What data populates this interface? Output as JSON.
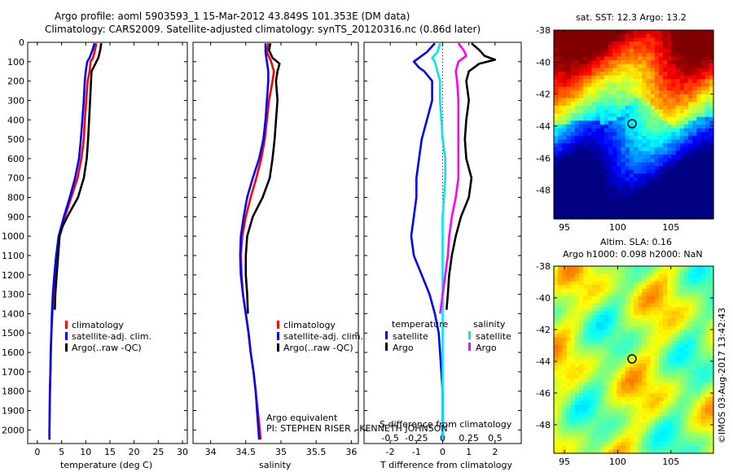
{
  "header": {
    "line1": "Argo profile: aoml 5903593_1 15-Mar-2012 43.849S 101.353E (DM data)",
    "line2": "Climatology: CARS2009. Satellite-adjusted climatology: synTS_20120316.nc (0.86d later)"
  },
  "colors": {
    "red": "#ff0000",
    "blue": "#0000ff",
    "black": "#000000",
    "cyan": "#00e5ee",
    "magenta": "#ff00ff"
  },
  "chart_data": [
    {
      "type": "line",
      "panel": "temperature",
      "xlabel": "temperature (deg C)",
      "xlim": [
        -2,
        31
      ],
      "xticks": [
        0,
        5,
        10,
        15,
        20,
        25,
        30
      ],
      "ylim": [
        2070,
        0
      ],
      "yticks": [
        0,
        100,
        200,
        300,
        400,
        500,
        600,
        700,
        800,
        900,
        1000,
        1100,
        1200,
        1300,
        1400,
        1500,
        1600,
        1700,
        1800,
        1900,
        2000
      ],
      "legend": [
        "climatology",
        "satellite-adj. clim.",
        "Argo(..raw -QC)"
      ],
      "series": [
        {
          "name": "climatology",
          "color": "red",
          "points": [
            [
              12.2,
              5
            ],
            [
              11.9,
              40
            ],
            [
              11.5,
              80
            ],
            [
              11.0,
              100
            ],
            [
              10.8,
              150
            ],
            [
              10.4,
              200
            ],
            [
              10.1,
              300
            ],
            [
              9.8,
              400
            ],
            [
              9.6,
              500
            ],
            [
              9.1,
              600
            ],
            [
              8.3,
              700
            ],
            [
              7.0,
              800
            ],
            [
              5.7,
              900
            ],
            [
              4.5,
              1000
            ],
            [
              3.9,
              1100
            ],
            [
              3.6,
              1200
            ],
            [
              3.3,
              1300
            ],
            [
              3.1,
              1400
            ],
            [
              2.9,
              1500
            ],
            [
              2.8,
              1600
            ],
            [
              2.7,
              1700
            ],
            [
              2.6,
              1800
            ],
            [
              2.55,
              1900
            ],
            [
              2.5,
              2000
            ],
            [
              2.5,
              2050
            ]
          ]
        },
        {
          "name": "satellite-adj. clim.",
          "color": "blue",
          "points": [
            [
              11.8,
              5
            ],
            [
              11.4,
              40
            ],
            [
              10.8,
              80
            ],
            [
              10.3,
              100
            ],
            [
              10.0,
              150
            ],
            [
              9.8,
              200
            ],
            [
              9.6,
              300
            ],
            [
              9.3,
              400
            ],
            [
              9.0,
              500
            ],
            [
              8.6,
              600
            ],
            [
              7.8,
              700
            ],
            [
              6.7,
              800
            ],
            [
              5.5,
              900
            ],
            [
              4.4,
              1000
            ],
            [
              3.9,
              1100
            ],
            [
              3.5,
              1200
            ],
            [
              3.2,
              1300
            ],
            [
              3.0,
              1400
            ],
            [
              2.9,
              1500
            ],
            [
              2.75,
              1600
            ],
            [
              2.7,
              1700
            ],
            [
              2.6,
              1800
            ],
            [
              2.55,
              1900
            ],
            [
              2.5,
              2000
            ],
            [
              2.5,
              2050
            ]
          ]
        },
        {
          "name": "Argo(..raw -QC)",
          "color": "black",
          "points": [
            [
              13.2,
              5
            ],
            [
              13.0,
              40
            ],
            [
              12.6,
              80
            ],
            [
              12.0,
              110
            ],
            [
              11.2,
              150
            ],
            [
              11.1,
              200
            ],
            [
              10.9,
              300
            ],
            [
              10.7,
              400
            ],
            [
              10.5,
              500
            ],
            [
              10.2,
              600
            ],
            [
              9.6,
              700
            ],
            [
              8.4,
              800
            ],
            [
              6.2,
              900
            ],
            [
              5.2,
              950
            ],
            [
              4.6,
              1000
            ],
            [
              4.3,
              1100
            ],
            [
              4.0,
              1200
            ],
            [
              3.7,
              1300
            ],
            [
              3.6,
              1380
            ]
          ]
        }
      ]
    },
    {
      "type": "line",
      "panel": "salinity",
      "xlabel": "salinity",
      "xlim": [
        33.75,
        36.1
      ],
      "xticks": [
        34,
        34.5,
        35,
        35.5,
        36
      ],
      "xticklabels": [
        "34",
        "34.5",
        "35",
        "35.5",
        "36"
      ],
      "ylim": [
        2070,
        0
      ],
      "legend": [
        "climatology",
        "satellite-adj. clim.",
        "Argo(..raw -QC)"
      ],
      "annotation": [
        "Argo equivalent",
        "PI: STEPHEN RISER , KENNETH JOHNSON"
      ],
      "series": [
        {
          "name": "climatology",
          "color": "red",
          "points": [
            [
              34.82,
              5
            ],
            [
              34.8,
              50
            ],
            [
              34.86,
              100
            ],
            [
              34.9,
              150
            ],
            [
              34.88,
              200
            ],
            [
              34.83,
              300
            ],
            [
              34.8,
              400
            ],
            [
              34.77,
              500
            ],
            [
              34.72,
              600
            ],
            [
              34.65,
              700
            ],
            [
              34.57,
              800
            ],
            [
              34.5,
              900
            ],
            [
              34.45,
              1000
            ],
            [
              34.43,
              1100
            ],
            [
              34.44,
              1200
            ],
            [
              34.46,
              1300
            ],
            [
              34.5,
              1400
            ],
            [
              34.54,
              1500
            ],
            [
              34.57,
              1600
            ],
            [
              34.61,
              1700
            ],
            [
              34.64,
              1800
            ],
            [
              34.67,
              1900
            ],
            [
              34.7,
              2000
            ],
            [
              34.71,
              2050
            ]
          ]
        },
        {
          "name": "satellite-adj. clim.",
          "color": "blue",
          "points": [
            [
              34.78,
              5
            ],
            [
              34.78,
              50
            ],
            [
              34.8,
              100
            ],
            [
              34.82,
              150
            ],
            [
              34.82,
              200
            ],
            [
              34.8,
              300
            ],
            [
              34.78,
              400
            ],
            [
              34.75,
              500
            ],
            [
              34.69,
              600
            ],
            [
              34.6,
              700
            ],
            [
              34.52,
              800
            ],
            [
              34.47,
              900
            ],
            [
              34.43,
              1000
            ],
            [
              34.42,
              1100
            ],
            [
              34.43,
              1200
            ],
            [
              34.46,
              1300
            ],
            [
              34.5,
              1400
            ],
            [
              34.54,
              1500
            ],
            [
              34.57,
              1600
            ],
            [
              34.61,
              1700
            ],
            [
              34.64,
              1800
            ],
            [
              34.66,
              1900
            ],
            [
              34.68,
              2000
            ],
            [
              34.69,
              2050
            ]
          ]
        },
        {
          "name": "Argo(..raw -QC)",
          "color": "black",
          "points": [
            [
              34.85,
              5
            ],
            [
              34.83,
              40
            ],
            [
              34.88,
              80
            ],
            [
              34.98,
              110
            ],
            [
              34.95,
              150
            ],
            [
              34.93,
              200
            ],
            [
              34.95,
              300
            ],
            [
              34.93,
              400
            ],
            [
              34.91,
              500
            ],
            [
              34.88,
              600
            ],
            [
              34.84,
              700
            ],
            [
              34.74,
              800
            ],
            [
              34.6,
              900
            ],
            [
              34.52,
              1000
            ],
            [
              34.5,
              1100
            ],
            [
              34.5,
              1200
            ],
            [
              34.52,
              1300
            ],
            [
              34.53,
              1400
            ]
          ]
        }
      ]
    },
    {
      "type": "line",
      "panel": "difference",
      "xlabel": "T difference from climatology",
      "x2label": "S difference from climatology",
      "xlim": [
        -3,
        3
      ],
      "xticks": [
        -2,
        -1,
        0,
        1,
        2
      ],
      "x2ticks": [
        -0.5,
        -0.25,
        0,
        0.25,
        0.5
      ],
      "x2ticklabels": [
        "-0.5",
        "-0.25",
        "0",
        "0.25",
        "0.5"
      ],
      "ylim": [
        2070,
        0
      ],
      "legend_titles": [
        "temperature",
        "salinity"
      ],
      "legend": [
        "satellite",
        "Argo",
        "satellite",
        "Argo"
      ],
      "series": [
        {
          "name": "satellite",
          "group": "temperature",
          "color": "blue",
          "points": [
            [
              -0.3,
              5
            ],
            [
              -0.6,
              50
            ],
            [
              -0.9,
              80
            ],
            [
              -1.1,
              100
            ],
            [
              -0.9,
              130
            ],
            [
              -0.7,
              150
            ],
            [
              -0.4,
              200
            ],
            [
              -0.4,
              300
            ],
            [
              -0.6,
              400
            ],
            [
              -0.8,
              500
            ],
            [
              -0.9,
              600
            ],
            [
              -1.0,
              700
            ],
            [
              -1.0,
              800
            ],
            [
              -1.1,
              900
            ],
            [
              -1.2,
              1000
            ],
            [
              -1.1,
              1100
            ],
            [
              -0.8,
              1200
            ],
            [
              -0.5,
              1300
            ],
            [
              -0.3,
              1400
            ],
            [
              -0.15,
              1500
            ],
            [
              -0.1,
              1600
            ],
            [
              -0.05,
              1700
            ],
            [
              0,
              1800
            ],
            [
              0,
              1900
            ],
            [
              0,
              2000
            ],
            [
              0,
              2050
            ]
          ]
        },
        {
          "name": "Argo",
          "group": "temperature",
          "color": "black",
          "points": [
            [
              1.1,
              5
            ],
            [
              1.4,
              40
            ],
            [
              1.6,
              70
            ],
            [
              2.0,
              90
            ],
            [
              1.4,
              110
            ],
            [
              1.0,
              150
            ],
            [
              0.9,
              200
            ],
            [
              1.0,
              300
            ],
            [
              0.9,
              400
            ],
            [
              0.85,
              500
            ],
            [
              0.9,
              600
            ],
            [
              1.1,
              700
            ],
            [
              1.0,
              800
            ],
            [
              0.7,
              900
            ],
            [
              0.5,
              1000
            ],
            [
              0.35,
              1100
            ],
            [
              0.25,
              1200
            ],
            [
              0.2,
              1300
            ],
            [
              0.15,
              1380
            ]
          ]
        },
        {
          "name": "satellite",
          "group": "salinity",
          "color": "cyan",
          "points": [
            [
              -0.1,
              5
            ],
            [
              -0.2,
              50
            ],
            [
              -0.4,
              80
            ],
            [
              -0.3,
              100
            ],
            [
              -0.2,
              150
            ],
            [
              -0.1,
              200
            ],
            [
              -0.1,
              300
            ],
            [
              -0.05,
              400
            ],
            [
              0,
              500
            ],
            [
              0.1,
              600
            ],
            [
              0.1,
              700
            ],
            [
              0.05,
              800
            ],
            [
              0,
              900
            ],
            [
              0,
              1000
            ],
            [
              0,
              1100
            ],
            [
              0,
              1200
            ],
            [
              0,
              1300
            ],
            [
              0,
              1400
            ],
            [
              0,
              1500
            ],
            [
              0,
              1600
            ],
            [
              0,
              1700
            ],
            [
              0,
              1800
            ],
            [
              0,
              1900
            ],
            [
              0,
              2000
            ],
            [
              0,
              2050
            ]
          ]
        },
        {
          "name": "Argo",
          "group": "salinity",
          "color": "magenta",
          "points": [
            [
              0.6,
              5
            ],
            [
              0.8,
              40
            ],
            [
              0.9,
              70
            ],
            [
              0.6,
              100
            ],
            [
              0.5,
              150
            ],
            [
              0.55,
              200
            ],
            [
              0.6,
              300
            ],
            [
              0.6,
              400
            ],
            [
              0.6,
              500
            ],
            [
              0.6,
              600
            ],
            [
              0.6,
              700
            ],
            [
              0.5,
              800
            ],
            [
              0.35,
              900
            ],
            [
              0.25,
              1000
            ],
            [
              0.2,
              1100
            ],
            [
              0.1,
              1200
            ],
            [
              0.0,
              1300
            ],
            [
              -0.1,
              1400
            ]
          ]
        }
      ]
    },
    {
      "type": "heatmap",
      "panel": "map-sst",
      "title": "sat. SST: 12.3 Argo: 13.2",
      "xticks": [
        95,
        100,
        105
      ],
      "yticks": [
        -38,
        -40,
        -42,
        -44,
        -46,
        -48
      ],
      "xlim": [
        94,
        109
      ],
      "ylim": [
        -49.8,
        -38
      ],
      "argo_position": [
        101.353,
        -43.849
      ]
    },
    {
      "type": "heatmap",
      "panel": "map-sla",
      "title": [
        "Altim. SLA: 0.16",
        "Argo h1000: 0.098 h2000: NaN"
      ],
      "xticks": [
        95,
        100,
        105
      ],
      "yticks": [
        -38,
        -40,
        -42,
        -44,
        -46,
        -48
      ],
      "xlim": [
        94,
        109
      ],
      "ylim": [
        -49.8,
        -38
      ],
      "argo_position": [
        101.353,
        -43.849
      ]
    }
  ],
  "footer": {
    "credit": "©IMOS 03-Aug-2017 13:42:43"
  }
}
